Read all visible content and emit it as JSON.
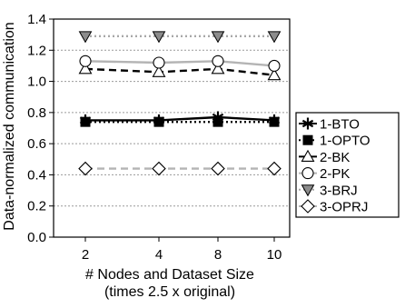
{
  "chart_data": {
    "type": "line",
    "title": "",
    "xlabel": "# Nodes and Dataset Size",
    "xlabel2": "(times 2.5 x original)",
    "ylabel": "Data-normalized communication",
    "x": [
      "2",
      "4",
      "8",
      "10"
    ],
    "ylim": [
      0.0,
      1.4
    ],
    "yticks": [
      "0.0",
      "0.2",
      "0.4",
      "0.6",
      "0.8",
      "1.0",
      "1.2",
      "1.4"
    ],
    "grid": "horizontal",
    "legend_position": "right",
    "series": [
      {
        "name": "1-BTO",
        "values": [
          0.75,
          0.75,
          0.77,
          0.75
        ],
        "color": "#000000",
        "line": "solid",
        "marker": "star"
      },
      {
        "name": "1-OPTO",
        "values": [
          0.74,
          0.74,
          0.74,
          0.74
        ],
        "color": "#000000",
        "line": "dotted",
        "marker": "filled-square"
      },
      {
        "name": "2-BK",
        "values": [
          1.08,
          1.06,
          1.08,
          1.04
        ],
        "color": "#000000",
        "line": "dashed",
        "marker": "open-triangle-up"
      },
      {
        "name": "2-PK",
        "values": [
          1.13,
          1.12,
          1.13,
          1.1
        ],
        "color": "#b4b4b4",
        "line": "solid",
        "marker": "open-circle"
      },
      {
        "name": "3-BRJ",
        "values": [
          1.29,
          1.29,
          1.29,
          1.29
        ],
        "color": "#a8a8a8",
        "line": "dotted",
        "marker": "gray-triangle-down"
      },
      {
        "name": "3-OPRJ",
        "values": [
          0.44,
          0.44,
          0.44,
          0.44
        ],
        "color": "#b4b4b4",
        "line": "dashed",
        "marker": "open-diamond"
      }
    ]
  }
}
